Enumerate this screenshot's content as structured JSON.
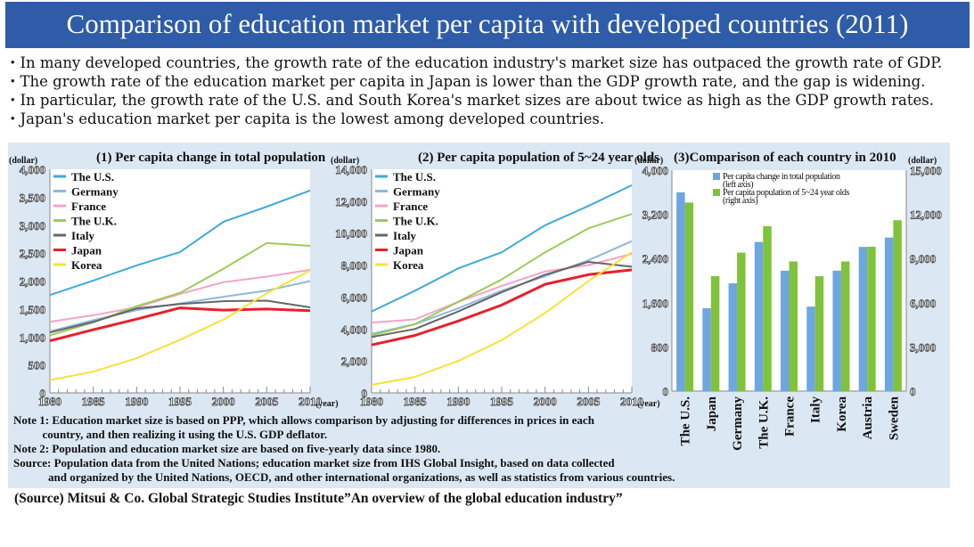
{
  "page": {
    "title": "Comparison of education market per capita with developed countries (2011)",
    "bullets": [
      "・In many developed countries, the growth rate of the education industry's market size has outpaced the growth rate of GDP.",
      "・The growth rate of the education market per capita in Japan is lower than the GDP growth rate, and the gap is widening.",
      "・In particular, the growth rate of the U.S. and South Korea's market sizes are about twice as high as the GDP growth rates.",
      "・Japan's education market per capita is the lowest among developed countries."
    ],
    "notes": [
      "Note 1: Education market size is based on PPP, which allows comparison by adjusting for differences in prices in each",
      "          country, and then realizing it using the U.S. GDP deflator.",
      "Note 2: Population and education market size are based on five-yearly data since 1980.",
      "Source: Population data from the United Nations; education market size from IHS Global Insight, based on data collected",
      "            and organized by the United Nations, OECD, and other international organizations, as well as statistics from various countries."
    ],
    "source": "(Source) Mitsui & Co. Global Strategic Studies Institute”An overview of the global education industry”"
  },
  "chart_data": [
    {
      "type": "line",
      "title": "(1) Per capita change in total population",
      "ylabel": "(dollar)",
      "xlabel": "(year)",
      "ylim": [
        0,
        4000
      ],
      "yticks": [
        "0",
        "500",
        "1,000",
        "1,500",
        "2,000",
        "2,500",
        "3,000",
        "3,500",
        "4,000"
      ],
      "xticks": [
        "1980",
        "1985",
        "1990",
        "1995",
        "2000",
        "2005",
        "2010"
      ],
      "x": [
        1980,
        1985,
        1990,
        1995,
        2000,
        2005,
        2010
      ],
      "legend": "top-left",
      "series": [
        {
          "name": "The U.S.",
          "color": "#3fa9dd",
          "values": [
            1750,
            2010,
            2280,
            2520,
            3060,
            3330,
            3620
          ]
        },
        {
          "name": "Germany",
          "color": "#8fb8dc",
          "values": [
            1100,
            1300,
            1480,
            1600,
            1720,
            1830,
            2000
          ]
        },
        {
          "name": "France",
          "color": "#f4a3c8",
          "values": [
            1270,
            1390,
            1530,
            1770,
            1980,
            2080,
            2200
          ]
        },
        {
          "name": "The U.K.",
          "color": "#9dcb5a",
          "values": [
            1030,
            1260,
            1550,
            1790,
            2220,
            2680,
            2630
          ]
        },
        {
          "name": "Italy",
          "color": "#666666",
          "values": [
            1080,
            1270,
            1510,
            1590,
            1640,
            1650,
            1530
          ]
        },
        {
          "name": "Japan",
          "color": "#e8202a",
          "values": [
            930,
            1130,
            1320,
            1520,
            1480,
            1500,
            1470
          ]
        },
        {
          "name": "Korea",
          "color": "#f6e23a",
          "values": [
            230,
            380,
            620,
            950,
            1310,
            1780,
            2190
          ]
        }
      ]
    },
    {
      "type": "line",
      "title": "(2) Per capita population of 5~24 year olds",
      "ylabel": "(dollar)",
      "xlabel": "(year)",
      "ylim": [
        0,
        14000
      ],
      "yticks": [
        "0",
        "2,000",
        "4,000",
        "6,000",
        "8,000",
        "10,000",
        "12,000",
        "14,000"
      ],
      "xticks": [
        "1980",
        "1985",
        "1990",
        "1995",
        "2000",
        "2005",
        "2010"
      ],
      "x": [
        1980,
        1985,
        1990,
        1995,
        2000,
        2005,
        2010
      ],
      "legend": "top-left",
      "series": [
        {
          "name": "The U.S.",
          "color": "#3fa9dd",
          "values": [
            5100,
            6400,
            7800,
            8800,
            10500,
            11700,
            13000
          ]
        },
        {
          "name": "Germany",
          "color": "#8fb8dc",
          "values": [
            3700,
            4300,
            5300,
            6400,
            7300,
            8300,
            9500
          ]
        },
        {
          "name": "France",
          "color": "#f4a3c8",
          "values": [
            4400,
            4600,
            5700,
            6700,
            7600,
            8000,
            8700
          ]
        },
        {
          "name": "The U.K.",
          "color": "#9dcb5a",
          "values": [
            3600,
            4300,
            5700,
            7100,
            8800,
            10300,
            11200
          ]
        },
        {
          "name": "Italy",
          "color": "#666666",
          "values": [
            3500,
            4000,
            5100,
            6300,
            7400,
            8200,
            7900
          ]
        },
        {
          "name": "Japan",
          "color": "#e8202a",
          "values": [
            3000,
            3600,
            4500,
            5500,
            6800,
            7400,
            7700
          ]
        },
        {
          "name": "Korea",
          "color": "#f6e23a",
          "values": [
            500,
            1000,
            2000,
            3300,
            5000,
            7000,
            8800
          ]
        }
      ]
    },
    {
      "type": "bar",
      "title": "(3)Comparison of each country in 2010",
      "ylabel_left": "(dollar)",
      "ylabel_right": "(dollar)",
      "ylim_left": [
        0,
        4000
      ],
      "ylim_right": [
        0,
        15000
      ],
      "yticks_left": [
        "0",
        "800",
        "1,600",
        "2,400",
        "3,200",
        "4,000"
      ],
      "yticks_right": [
        "0",
        "3,000",
        "6,000",
        "9,000",
        "12,000",
        "15,000"
      ],
      "categories": [
        "The U.S.",
        "Japan",
        "Germany",
        "The U.K.",
        "France",
        "Italy",
        "Korea",
        "Austria",
        "Sweden"
      ],
      "legend": "top-left",
      "series": [
        {
          "name": "Per capita change in total population (left axis)",
          "color": "#6da6e0",
          "axis": "left",
          "values": [
            3600,
            1500,
            1950,
            2700,
            2180,
            1530,
            2180,
            2610,
            2780
          ]
        },
        {
          "name": "Per capita population of 5~24 year olds (right axis)",
          "color": "#80c33a",
          "axis": "right",
          "values": [
            12800,
            7800,
            9400,
            11200,
            8800,
            7800,
            8800,
            9800,
            11600
          ]
        }
      ]
    }
  ]
}
